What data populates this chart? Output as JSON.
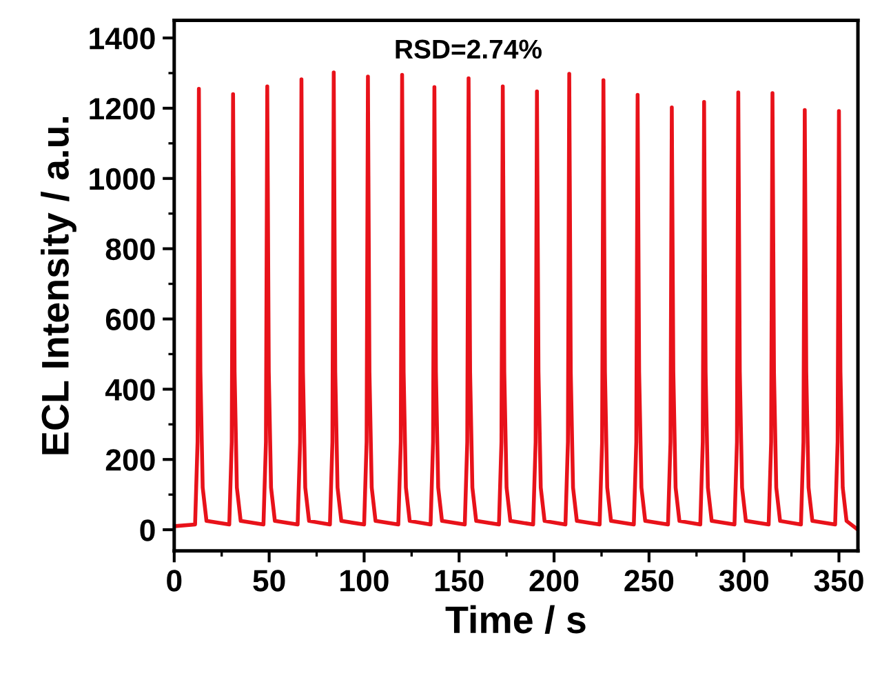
{
  "chart_data": {
    "type": "line",
    "xlabel": "Time / s",
    "ylabel": "ECL Intensity / a.u.",
    "annotations": [
      "RSD=2.74%"
    ],
    "xlim": [
      0,
      360
    ],
    "xticks": [
      0,
      50,
      100,
      150,
      200,
      250,
      300,
      350
    ],
    "ylim": [
      -60,
      1450
    ],
    "yticks": [
      0,
      200,
      400,
      600,
      800,
      1000,
      1200,
      1400
    ],
    "grid": false,
    "legend": false,
    "marker": "none",
    "line_style": "solid",
    "series": [
      {
        "color": "#e8121a",
        "x": [
          0,
          11,
          12.3,
          13,
          13.8,
          15,
          17,
          29,
          30.3,
          31,
          31.8,
          33,
          35,
          47,
          48.3,
          49,
          49.8,
          51,
          53,
          65,
          66.3,
          67,
          67.8,
          69,
          71,
          82,
          83.3,
          84,
          84.8,
          86,
          88,
          100,
          101.3,
          102,
          102.8,
          104,
          106,
          118,
          119.3,
          120,
          120.8,
          122,
          124,
          135,
          136.3,
          137,
          137.8,
          139,
          141,
          153,
          154.3,
          155,
          155.8,
          157,
          159,
          171,
          172.3,
          173,
          173.8,
          175,
          177,
          189,
          190.3,
          191,
          191.8,
          193,
          195,
          206,
          207.3,
          208,
          208.8,
          210,
          212,
          224,
          225.3,
          226,
          226.8,
          228,
          230,
          242,
          243.3,
          244,
          244.8,
          246,
          248,
          260,
          261.3,
          262,
          262.8,
          264,
          266,
          277,
          278.3,
          279,
          279.8,
          281,
          283,
          295,
          296.3,
          297,
          297.8,
          299,
          301,
          313,
          314.3,
          315,
          315.8,
          317,
          319,
          330,
          331.3,
          332,
          332.8,
          334,
          336,
          348,
          349.3,
          350,
          350.8,
          352,
          354,
          360
        ],
        "values": [
          10,
          15,
          250,
          1255,
          450,
          120,
          25,
          15,
          250,
          1240,
          450,
          120,
          25,
          15,
          250,
          1262,
          450,
          120,
          25,
          15,
          250,
          1282,
          450,
          120,
          25,
          15,
          250,
          1302,
          450,
          120,
          25,
          15,
          250,
          1290,
          450,
          120,
          25,
          15,
          250,
          1295,
          450,
          120,
          25,
          15,
          250,
          1260,
          450,
          120,
          25,
          15,
          250,
          1285,
          450,
          120,
          25,
          15,
          250,
          1262,
          450,
          120,
          25,
          15,
          250,
          1248,
          450,
          120,
          25,
          15,
          250,
          1298,
          450,
          120,
          25,
          15,
          250,
          1280,
          450,
          120,
          25,
          15,
          250,
          1238,
          450,
          120,
          25,
          15,
          250,
          1202,
          450,
          120,
          25,
          15,
          250,
          1218,
          450,
          120,
          25,
          15,
          250,
          1245,
          450,
          120,
          25,
          15,
          250,
          1243,
          450,
          120,
          25,
          15,
          250,
          1195,
          450,
          120,
          25,
          15,
          250,
          1192,
          450,
          120,
          25,
          0
        ]
      }
    ]
  }
}
